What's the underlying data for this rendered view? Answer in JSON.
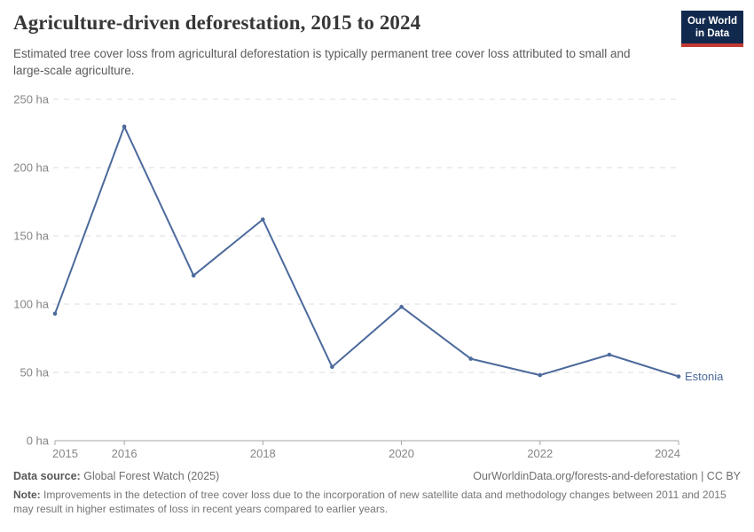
{
  "header": {
    "title": "Agriculture-driven deforestation, 2015 to 2024",
    "subtitle": "Estimated tree cover loss from agricultural deforestation is typically permanent tree cover loss attributed to small and large-scale agriculture.",
    "logo": {
      "line1": "Our World",
      "line2": "in Data"
    }
  },
  "chart_data": {
    "type": "line",
    "title": "Agriculture-driven deforestation, 2015 to 2024",
    "x": [
      2015,
      2016,
      2017,
      2018,
      2019,
      2020,
      2021,
      2022,
      2023,
      2024
    ],
    "series": [
      {
        "name": "Estonia",
        "color": "#4C6A9C",
        "values": [
          93,
          230,
          121,
          162,
          54,
          98,
          60,
          48,
          63,
          47
        ]
      }
    ],
    "unit": "ha",
    "ylim": [
      0,
      250
    ],
    "yticks": [
      0,
      50,
      100,
      150,
      200,
      250
    ],
    "ytick_suffix": " ha",
    "xticks": [
      2015,
      2016,
      2018,
      2020,
      2022,
      2024
    ],
    "grid": "horizontal-dashed",
    "legend": "end-of-line-label",
    "colors": {
      "gridline": "#dcdcdc",
      "axis": "#a5a5a5",
      "tick_label": "#858585"
    }
  },
  "footer": {
    "datasource_label": "Data source:",
    "datasource_value": "Global Forest Watch (2025)",
    "link": "OurWorldinData.org/forests-and-deforestation | CC BY",
    "note_label": "Note:",
    "note_value": "Improvements in the detection of tree cover loss due to the incorporation of new satellite data and methodology changes between 2011 and 2015 may result in higher estimates of loss in recent years compared to earlier years."
  }
}
